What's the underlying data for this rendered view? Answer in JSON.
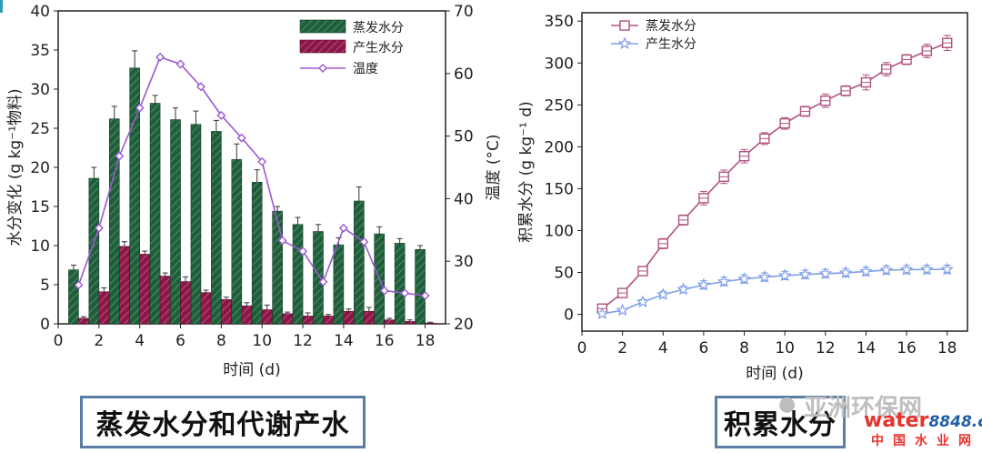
{
  "colors": {
    "evap": "#1f5e3a",
    "prod": "#8a1747",
    "temp": "#9b59d0",
    "cum_evap": "#b0527e",
    "cum_prod": "#7f9ee8"
  },
  "chart_data": [
    {
      "type": "bar",
      "title": "",
      "xlabel": "时间 (d)",
      "ylabel": "水分变化 (g kg⁻¹物料)",
      "y2label": "温度 (°C)",
      "xlim": [
        0,
        19
      ],
      "ylim": [
        0,
        40
      ],
      "y2lim": [
        20,
        70
      ],
      "xticks": [
        0,
        2,
        4,
        6,
        8,
        10,
        12,
        14,
        16,
        18
      ],
      "yticks": [
        0,
        5,
        10,
        15,
        20,
        25,
        30,
        35,
        40
      ],
      "y2ticks": [
        20,
        30,
        40,
        50,
        60,
        70
      ],
      "x": [
        1,
        2,
        3,
        4,
        5,
        6,
        7,
        8,
        9,
        10,
        11,
        12,
        13,
        14,
        15,
        16,
        17,
        18
      ],
      "legend_position": "top-right",
      "series": [
        {
          "name": "蒸发水分",
          "kind": "bar",
          "values": [
            6.9,
            18.6,
            26.2,
            32.7,
            28.2,
            26.1,
            25.5,
            24.6,
            21.0,
            18.1,
            14.4,
            12.7,
            11.8,
            10.1,
            15.7,
            11.5,
            10.3,
            9.5
          ],
          "errors": [
            0.6,
            1.4,
            1.6,
            2.2,
            1.0,
            1.5,
            1.7,
            1.4,
            2.0,
            1.6,
            0.6,
            0.9,
            0.9,
            0.9,
            1.8,
            0.9,
            0.6,
            0.5
          ]
        },
        {
          "name": "产生水分",
          "kind": "bar",
          "values": [
            0.7,
            4.1,
            9.9,
            8.9,
            6.1,
            5.4,
            4.0,
            3.1,
            2.3,
            1.8,
            1.3,
            1.0,
            1.0,
            1.6,
            1.6,
            0.5,
            0.3,
            0.1
          ],
          "errors": [
            0.2,
            0.5,
            0.6,
            0.4,
            0.4,
            0.6,
            0.3,
            0.3,
            0.4,
            0.6,
            0.2,
            0.4,
            0.2,
            0.3,
            0.5,
            0.2,
            0.2,
            0.1
          ]
        },
        {
          "name": "温度",
          "kind": "line",
          "axis": "right",
          "values": [
            26.2,
            35.3,
            46.8,
            54.5,
            62.6,
            61.5,
            57.9,
            53.3,
            49.7,
            45.9,
            33.3,
            31.6,
            26.7,
            35.3,
            33.1,
            25.3,
            24.9,
            24.5
          ]
        }
      ]
    },
    {
      "type": "line",
      "title": "",
      "xlabel": "时间 (d)",
      "ylabel": "积累水分 (g kg⁻¹ d)",
      "xlim": [
        0,
        19
      ],
      "ylim": [
        -20,
        360
      ],
      "xticks": [
        0,
        2,
        4,
        6,
        8,
        10,
        12,
        14,
        16,
        18
      ],
      "yticks": [
        0,
        50,
        100,
        150,
        200,
        250,
        300,
        350
      ],
      "x": [
        1,
        2,
        3,
        4,
        5,
        6,
        7,
        8,
        9,
        10,
        11,
        12,
        13,
        14,
        15,
        16,
        17,
        18
      ],
      "legend_position": "top-left",
      "series": [
        {
          "name": "蒸发水分",
          "marker": "square",
          "values": [
            6.9,
            25.5,
            51.7,
            84.4,
            112.6,
            138.7,
            164.2,
            188.8,
            209.8,
            227.9,
            242.3,
            255.0,
            266.8,
            276.9,
            292.6,
            304.1,
            314.4,
            323.9
          ],
          "errors": [
            1,
            3,
            4,
            6,
            6,
            8,
            8,
            8,
            7,
            7,
            6,
            8,
            6,
            9,
            8,
            6,
            8,
            9
          ]
        },
        {
          "name": "产生水分",
          "marker": "star",
          "values": [
            0.7,
            4.8,
            14.7,
            23.6,
            29.7,
            35.1,
            39.1,
            42.2,
            44.5,
            46.3,
            47.6,
            48.6,
            49.6,
            51.2,
            52.8,
            53.3,
            53.6,
            53.7
          ],
          "errors": [
            1,
            2,
            3,
            4,
            4,
            5,
            5,
            5,
            5,
            5,
            5,
            5,
            5,
            5,
            5,
            5,
            5,
            5
          ]
        }
      ]
    }
  ],
  "captions": {
    "left": "蒸发水分和代谢产水",
    "right": "积累水分"
  },
  "watermark": {
    "brand": "亚洲环保网",
    "site_a": "water",
    "site_b": "8848",
    "site_c": ".com",
    "site_cn": "中国水业网"
  }
}
